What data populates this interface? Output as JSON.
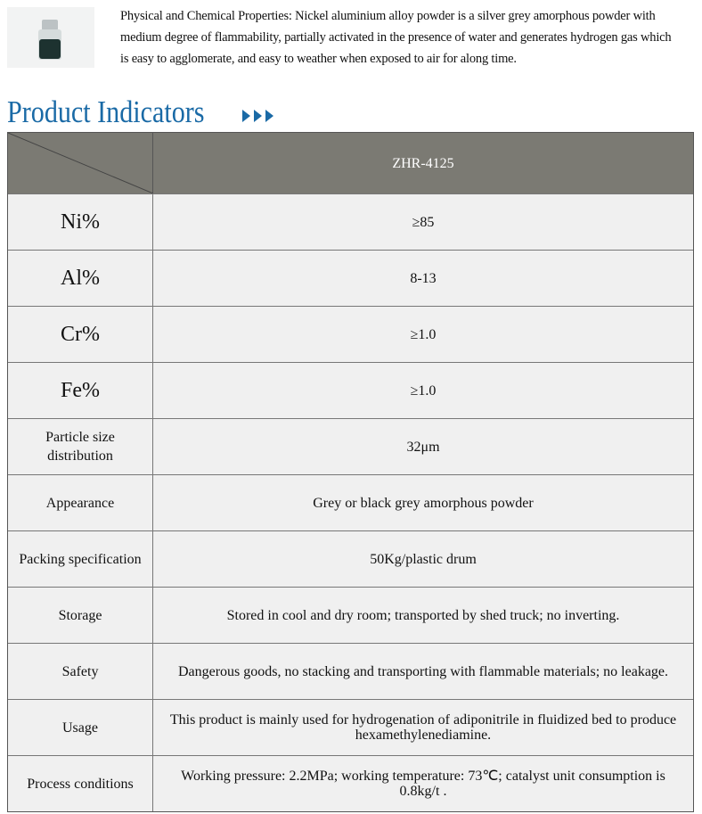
{
  "intro": {
    "text": "Physical and Chemical Properties: Nickel aluminium alloy powder is a silver grey amorphous  powder with medium degree of flammability, partially activated in the presence of water and    generates hydrogen gas which is easy to agglomerate, and easy to weather when exposed to air for along time."
  },
  "section_title": "Product Indicators",
  "table": {
    "header": "ZHR-4125",
    "rows": [
      [
        "Ni%",
        "≥85"
      ],
      [
        "Al%",
        "8-13"
      ],
      [
        "Cr%",
        "≥1.0"
      ],
      [
        "Fe%",
        "≥1.0"
      ],
      [
        "Particle size distribution",
        "32μm"
      ],
      [
        "Appearance",
        "Grey or black grey amorphous powder"
      ],
      [
        "Packing specification",
        "50Kg/plastic drum"
      ],
      [
        "Storage",
        "Stored in cool and dry room; transported by shed truck; no inverting."
      ],
      [
        "Safety",
        "Dangerous goods, no stacking and transporting with flammable materials; no leakage."
      ],
      [
        "Usage",
        "This product is mainly used for hydrogenation of adiponitrile in fluidized bed to produce hexamethylenediamine."
      ],
      [
        "Process conditions",
        "Working pressure: 2.2MPa; working temperature: 73℃; catalyst unit consumption is 0.8kg/t ."
      ]
    ]
  }
}
